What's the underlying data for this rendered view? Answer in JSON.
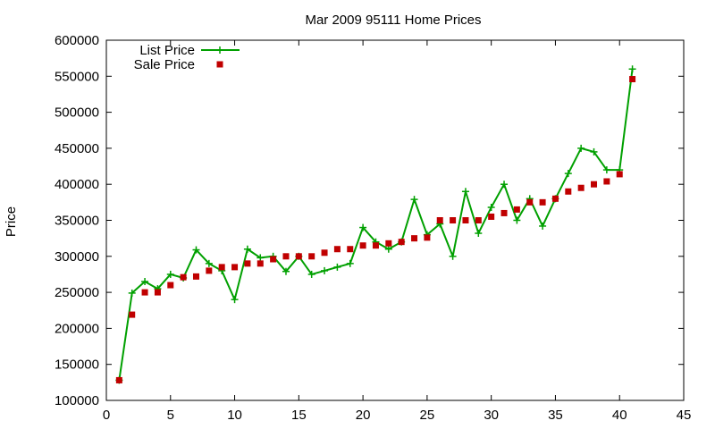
{
  "chart_data": {
    "type": "line",
    "title": "Mar 2009 95111 Home Prices",
    "xlabel": "",
    "ylabel": "Price",
    "xlim": [
      0,
      45
    ],
    "ylim": [
      100000,
      600000
    ],
    "xticks": [
      0,
      5,
      10,
      15,
      20,
      25,
      30,
      35,
      40,
      45
    ],
    "yticks": [
      100000,
      150000,
      200000,
      250000,
      300000,
      350000,
      400000,
      450000,
      500000,
      550000,
      600000
    ],
    "grid": false,
    "legend_position": "top-left",
    "series": [
      {
        "name": "List Price",
        "style": "linespoints",
        "color": "#00a000",
        "x": [
          1,
          2,
          3,
          4,
          5,
          6,
          7,
          8,
          9,
          10,
          11,
          12,
          13,
          14,
          15,
          16,
          17,
          18,
          19,
          20,
          21,
          22,
          23,
          24,
          25,
          26,
          27,
          28,
          29,
          30,
          31,
          32,
          33,
          34,
          35,
          36,
          37,
          38,
          39,
          40,
          41
        ],
        "values": [
          128000,
          249000,
          265000,
          255000,
          275000,
          270000,
          309000,
          290000,
          280000,
          240000,
          310000,
          298000,
          300000,
          279000,
          300000,
          275000,
          280000,
          285000,
          290000,
          340000,
          320000,
          310000,
          320000,
          379000,
          330000,
          345000,
          300000,
          390000,
          332000,
          368000,
          400000,
          350000,
          380000,
          342000,
          380000,
          415000,
          450000,
          445000,
          420000,
          420000,
          560000
        ]
      },
      {
        "name": "Sale Price",
        "style": "points",
        "color": "#c00000",
        "x": [
          1,
          2,
          3,
          4,
          5,
          6,
          7,
          8,
          9,
          10,
          11,
          12,
          13,
          14,
          15,
          16,
          17,
          18,
          19,
          20,
          21,
          22,
          23,
          24,
          25,
          26,
          27,
          28,
          29,
          30,
          31,
          32,
          33,
          34,
          35,
          36,
          37,
          38,
          39,
          40,
          41
        ],
        "values": [
          128000,
          219000,
          250000,
          250000,
          260000,
          271000,
          272000,
          280000,
          285000,
          285000,
          290000,
          290000,
          296000,
          300000,
          300000,
          300000,
          305000,
          310000,
          310000,
          315000,
          315000,
          318000,
          320000,
          325000,
          326000,
          350000,
          350000,
          350000,
          350000,
          355000,
          360000,
          365000,
          375000,
          375000,
          380000,
          390000,
          395000,
          400000,
          404000,
          414000,
          546000
        ]
      }
    ]
  }
}
